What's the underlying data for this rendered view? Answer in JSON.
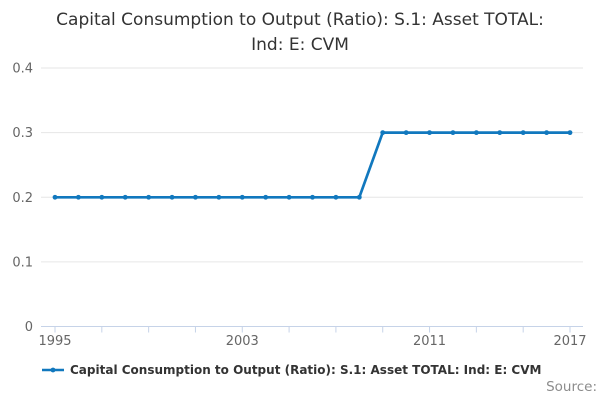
{
  "chart_data": {
    "type": "line",
    "title": "Capital Consumption to Output (Ratio): S.1: Asset TOTAL: Ind: E: CVM",
    "xlabel": "",
    "ylabel": "",
    "x": [
      1995,
      1996,
      1997,
      1998,
      1999,
      2000,
      2001,
      2002,
      2003,
      2004,
      2005,
      2006,
      2007,
      2008,
      2009,
      2010,
      2011,
      2012,
      2013,
      2014,
      2015,
      2016,
      2017
    ],
    "series": [
      {
        "name": "Capital Consumption to Output (Ratio): S.1: Asset TOTAL: Ind: E: CVM",
        "values": [
          0.2,
          0.2,
          0.2,
          0.2,
          0.2,
          0.2,
          0.2,
          0.2,
          0.2,
          0.2,
          0.2,
          0.2,
          0.2,
          0.2,
          0.3,
          0.3,
          0.3,
          0.3,
          0.3,
          0.3,
          0.3,
          0.3,
          0.3
        ]
      }
    ],
    "xlim": [
      1995,
      2017
    ],
    "ylim": [
      0,
      0.4
    ],
    "yticks": [
      0,
      0.1,
      0.2,
      0.3,
      0.4
    ],
    "ytick_labels": [
      "0",
      "0.1",
      "0.2",
      "0.3",
      "0.4"
    ],
    "xticks": [
      1995,
      1997,
      1999,
      2001,
      2003,
      2005,
      2007,
      2009,
      2011,
      2013,
      2015,
      2017
    ],
    "labeled_xticks": [
      1995,
      2003,
      2011,
      2017
    ],
    "grid": "horizontal",
    "legend_position": "bottom",
    "colors": {
      "line": "#1178be",
      "grid": "#e6e6e6",
      "axis": "#c6d3e8",
      "tick_label": "#666666"
    }
  },
  "legend": {
    "label": "Capital Consumption to Output (Ratio): S.1: Asset TOTAL: Ind: E: CVM",
    "marker_color": "#1178be"
  },
  "footer": {
    "source_label": "Source:"
  }
}
